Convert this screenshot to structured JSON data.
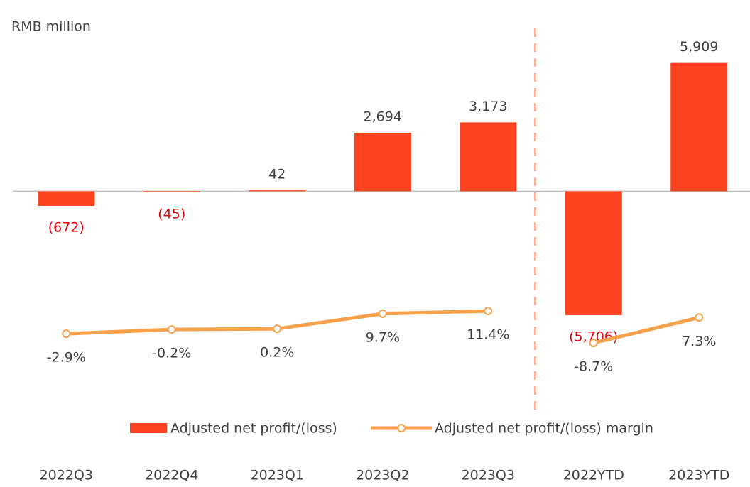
{
  "chart_data": {
    "type": "combo",
    "axis_label": "RMB million",
    "categories": [
      "2022Q3",
      "2022Q4",
      "2023Q1",
      "2023Q2",
      "2023Q3",
      "2022YTD",
      "2023YTD"
    ],
    "divider_before": "2022YTD",
    "series": [
      {
        "name": "Adjusted net profit/(loss)",
        "type": "bar",
        "color": "#fc4520",
        "values": [
          -672,
          -45,
          42,
          2694,
          3173,
          -5706,
          5909
        ],
        "value_labels": [
          "(672)",
          "(45)",
          "42",
          "2,694",
          "3,173",
          "(5,706)",
          "5,909"
        ]
      },
      {
        "name": "Adjusted net profit/(loss) margin",
        "type": "line",
        "axis": "y2",
        "color": "#f7a24b",
        "values": [
          -2.9,
          -0.2,
          0.2,
          9.7,
          11.4,
          -8.7,
          7.3
        ],
        "value_labels": [
          "-2.9%",
          "-0.2%",
          "0.2%",
          "9.7%",
          "11.4%",
          "-8.7%",
          "7.3%"
        ]
      }
    ],
    "negative_label_color": "#e8000b",
    "ylim": [
      -9500,
      7500
    ],
    "y2lim": [
      -43,
      189
    ]
  }
}
